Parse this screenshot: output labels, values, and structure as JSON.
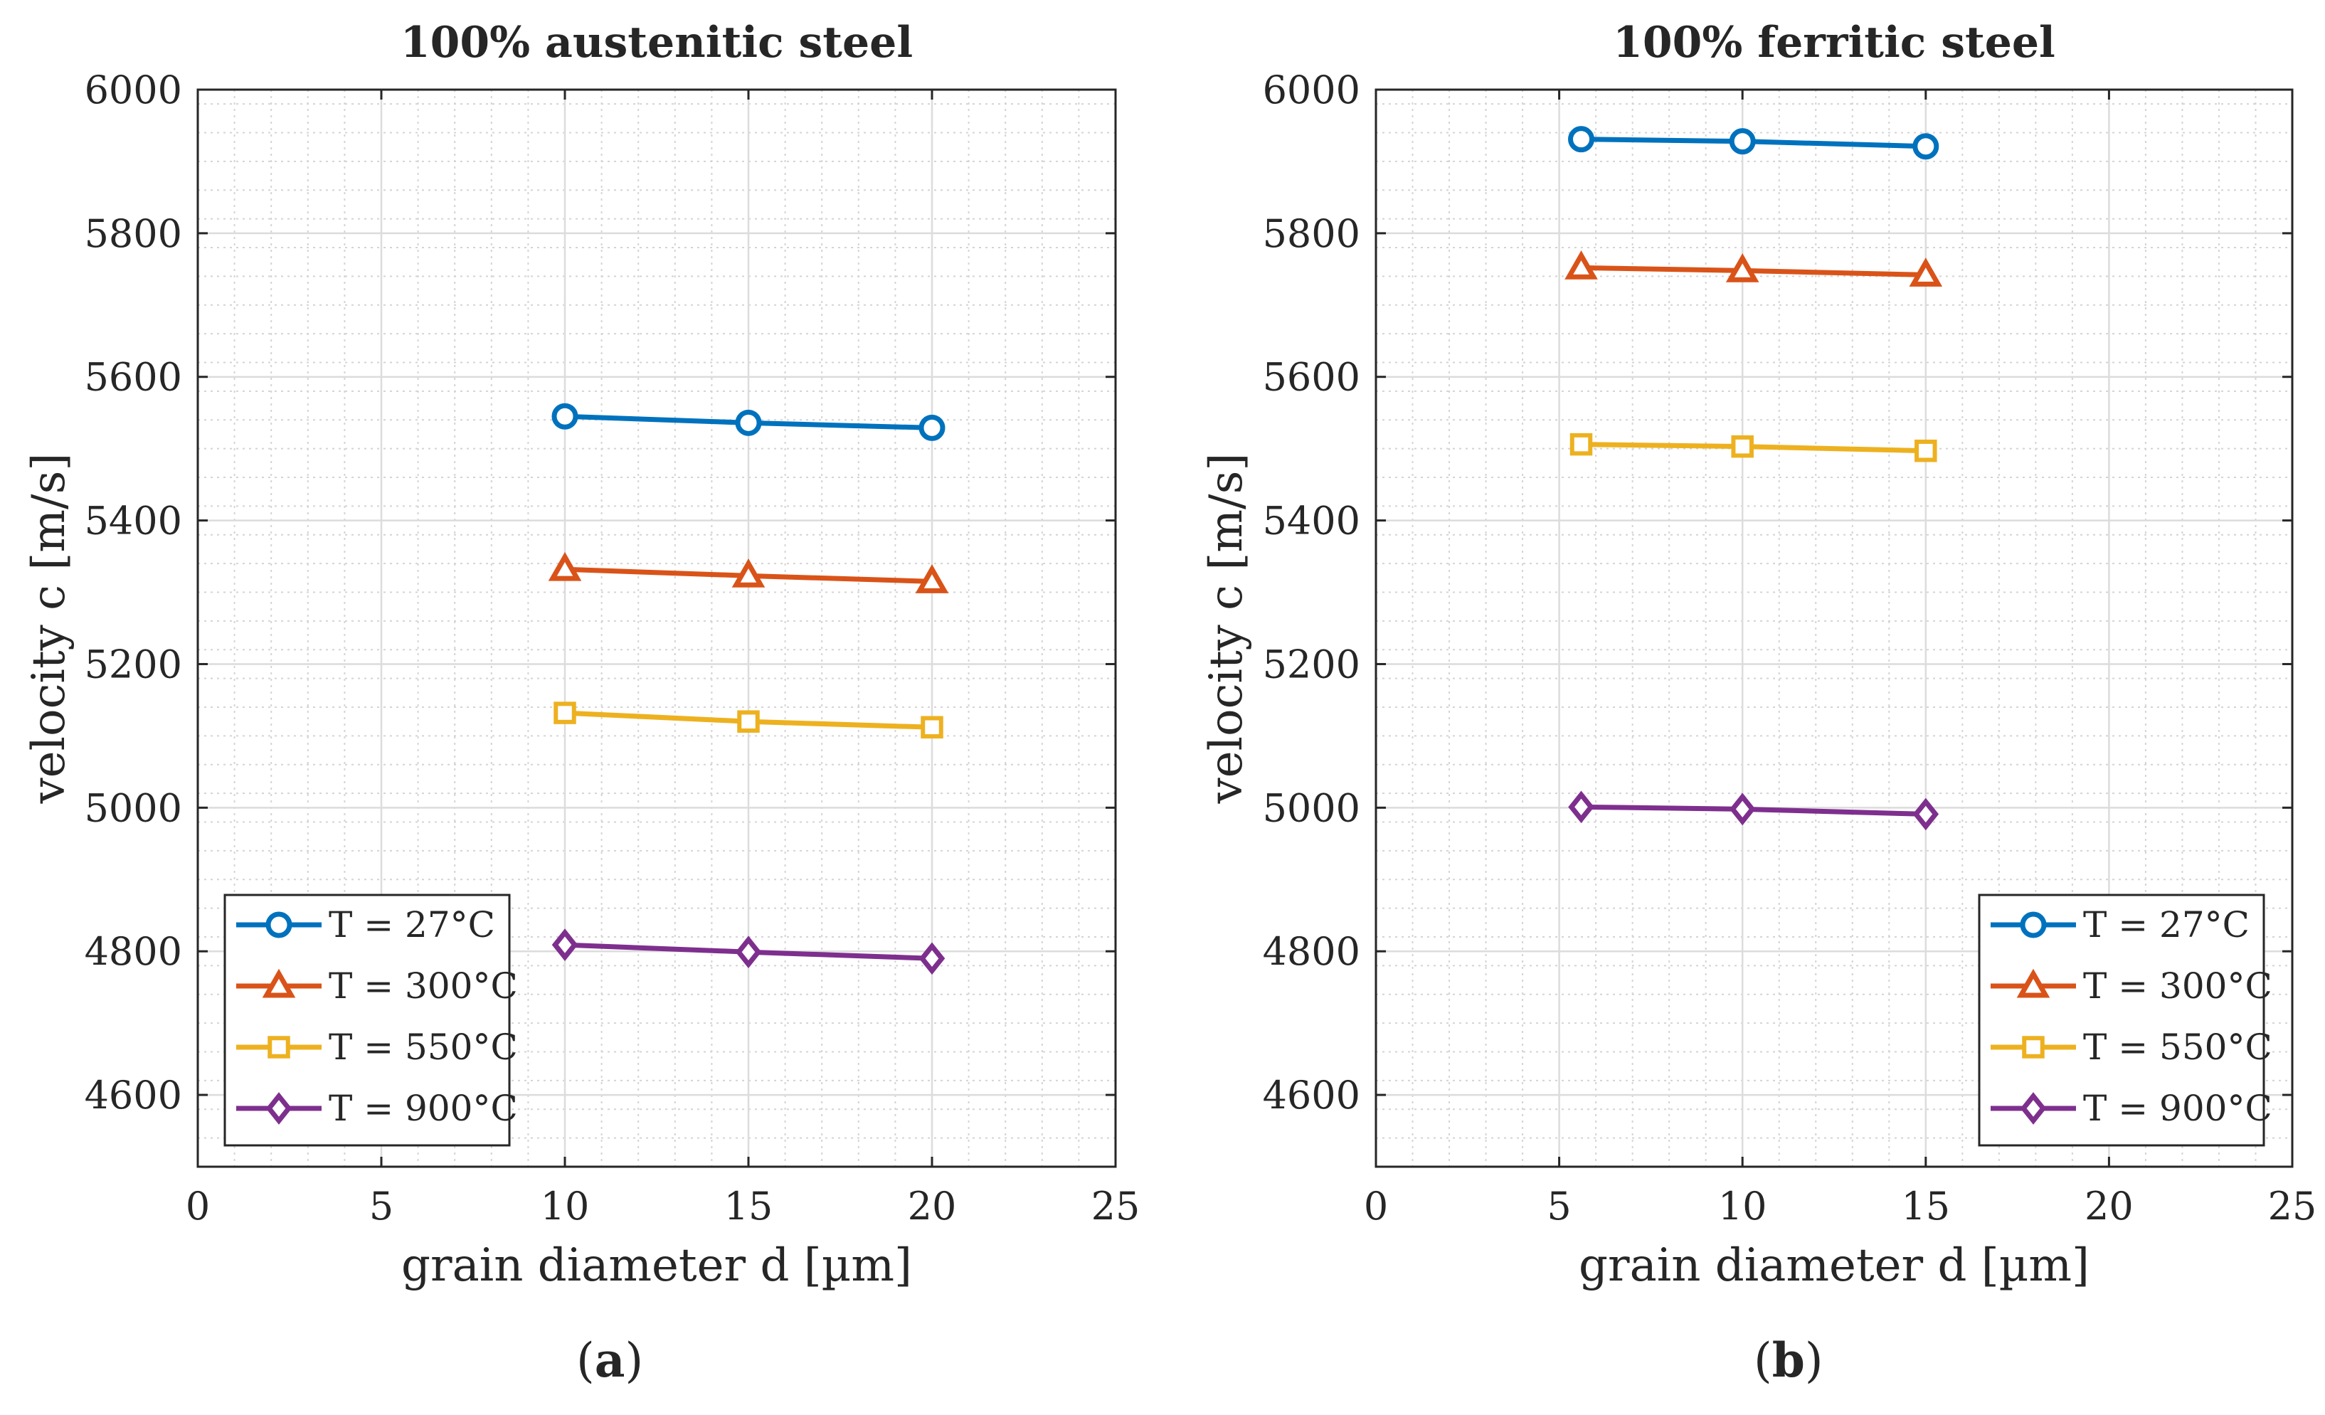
{
  "chart_data": [
    {
      "type": "line",
      "panel_label": "a",
      "title": "100% austenitic steel",
      "xlabel": "grain diameter d [µm]",
      "ylabel": "velocity c [m/s]",
      "xlim": [
        0,
        25
      ],
      "ylim": [
        4500,
        6000
      ],
      "xticks": [
        "0",
        "5",
        "10",
        "15",
        "20",
        "25"
      ],
      "yticks": [
        "4600",
        "4800",
        "5000",
        "5200",
        "5400",
        "5600",
        "5800",
        "6000"
      ],
      "grid": true,
      "minor_grid": true,
      "legend_position": "bottom-left",
      "x": [
        10,
        15,
        20
      ],
      "series": [
        {
          "name": "T = 27°C",
          "marker": "circle",
          "color": "#0072BD",
          "values": [
            5545,
            5536,
            5529
          ]
        },
        {
          "name": "T = 300°C",
          "marker": "triangle",
          "color": "#D95319",
          "values": [
            5332,
            5323,
            5315
          ]
        },
        {
          "name": "T = 550°C",
          "marker": "square",
          "color": "#EDB120",
          "values": [
            5132,
            5120,
            5112
          ]
        },
        {
          "name": "T = 900°C",
          "marker": "diamond",
          "color": "#7E2F8E",
          "values": [
            4809,
            4799,
            4790
          ]
        }
      ]
    },
    {
      "type": "line",
      "panel_label": "b",
      "title": "100% ferritic steel",
      "xlabel": "grain diameter d [µm]",
      "ylabel": "velocity c [m/s]",
      "xlim": [
        0,
        25
      ],
      "ylim": [
        4500,
        6000
      ],
      "xticks": [
        "0",
        "5",
        "10",
        "15",
        "20",
        "25"
      ],
      "yticks": [
        "4600",
        "4800",
        "5000",
        "5200",
        "5400",
        "5600",
        "5800",
        "6000"
      ],
      "grid": true,
      "minor_grid": true,
      "legend_position": "bottom-right",
      "x": [
        5.6,
        10,
        15
      ],
      "series": [
        {
          "name": "T = 27°C",
          "marker": "circle",
          "color": "#0072BD",
          "values": [
            5931,
            5928,
            5921
          ]
        },
        {
          "name": "T = 300°C",
          "marker": "triangle",
          "color": "#D95319",
          "values": [
            5752,
            5748,
            5742
          ]
        },
        {
          "name": "T = 550°C",
          "marker": "square",
          "color": "#EDB120",
          "values": [
            5506,
            5503,
            5497
          ]
        },
        {
          "name": "T = 900°C",
          "marker": "diamond",
          "color": "#7E2F8E",
          "values": [
            5001,
            4998,
            4991
          ]
        }
      ]
    }
  ]
}
